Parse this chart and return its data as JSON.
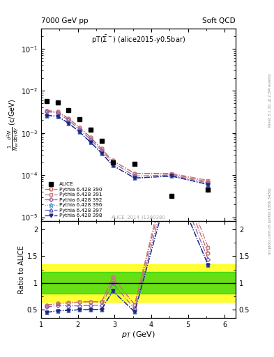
{
  "title_left": "7000 GeV pp",
  "title_right": "Soft QCD",
  "inner_title": "pT(Σ̅⁻) (alice2015-y0.5bar)",
  "watermark": "ALICE_2014_I1300380",
  "right_label_top": "Rivet 3.1.10, ≥ 2.5M events",
  "right_label_bot": "mcplots.cern.ch [arXiv:1306.3436]",
  "ylabel_ratio": "Ratio to ALICE",
  "xlabel": "p_T (GeV)",
  "xlim": [
    1.0,
    6.3
  ],
  "ylim_main": [
    8e-06,
    0.3
  ],
  "ylim_ratio": [
    0.35,
    2.15
  ],
  "ratio_yticks": [
    0.5,
    1.0,
    1.5,
    2.0
  ],
  "alice_x": [
    1.15,
    1.45,
    1.75,
    2.05,
    2.35,
    2.65,
    2.95,
    3.55,
    4.55,
    5.55
  ],
  "alice_y": [
    0.0058,
    0.0052,
    0.0035,
    0.0021,
    0.0012,
    0.00065,
    0.0002,
    0.000185,
    3.2e-05,
    4.5e-05
  ],
  "py390_x": [
    1.15,
    1.45,
    1.75,
    2.05,
    2.35,
    2.65,
    2.95,
    3.55,
    4.55,
    5.55
  ],
  "py390_y": [
    0.0034,
    0.0032,
    0.0022,
    0.00135,
    0.00078,
    0.00042,
    0.00022,
    0.00011,
    0.000105,
    7e-05
  ],
  "py391_x": [
    1.15,
    1.45,
    1.75,
    2.05,
    2.35,
    2.65,
    2.95,
    3.55,
    4.55,
    5.55
  ],
  "py391_y": [
    0.0034,
    0.0032,
    0.0022,
    0.00135,
    0.00078,
    0.00042,
    0.00022,
    0.00011,
    0.00011,
    7.5e-05
  ],
  "py392_x": [
    1.15,
    1.45,
    1.75,
    2.05,
    2.35,
    2.65,
    2.95,
    3.55,
    4.55,
    5.55
  ],
  "py392_y": [
    0.0032,
    0.003,
    0.002,
    0.0012,
    0.0007,
    0.00038,
    0.0002,
    9.5e-05,
    0.0001,
    6.5e-05
  ],
  "py396_x": [
    1.15,
    1.45,
    1.75,
    2.05,
    2.35,
    2.65,
    2.95,
    3.55,
    4.55,
    5.55
  ],
  "py396_y": [
    0.0026,
    0.0025,
    0.0017,
    0.00105,
    0.0006,
    0.00033,
    0.00017,
    8.5e-05,
    9.5e-05,
    6e-05
  ],
  "py397_x": [
    1.15,
    1.45,
    1.75,
    2.05,
    2.35,
    2.65,
    2.95,
    3.55,
    4.55,
    5.55
  ],
  "py397_y": [
    0.0026,
    0.0025,
    0.0017,
    0.00105,
    0.0006,
    0.00033,
    0.00017,
    8.5e-05,
    9.5e-05,
    6e-05
  ],
  "py398_x": [
    1.15,
    1.45,
    1.75,
    2.05,
    2.35,
    2.65,
    2.95,
    3.55,
    4.55,
    5.55
  ],
  "py398_y": [
    0.0026,
    0.0025,
    0.0017,
    0.00105,
    0.0006,
    0.00033,
    0.00017,
    8.5e-05,
    9.5e-05,
    6e-05
  ],
  "color_390": "#c86060",
  "color_391": "#c87878",
  "color_392": "#9060b0",
  "color_396": "#60a0c8",
  "color_397": "#5060c8",
  "color_398": "#202880",
  "green_band_lo": 0.8,
  "green_band_hi": 1.2,
  "yellow_band_lo": 0.65,
  "yellow_band_hi": 1.35
}
